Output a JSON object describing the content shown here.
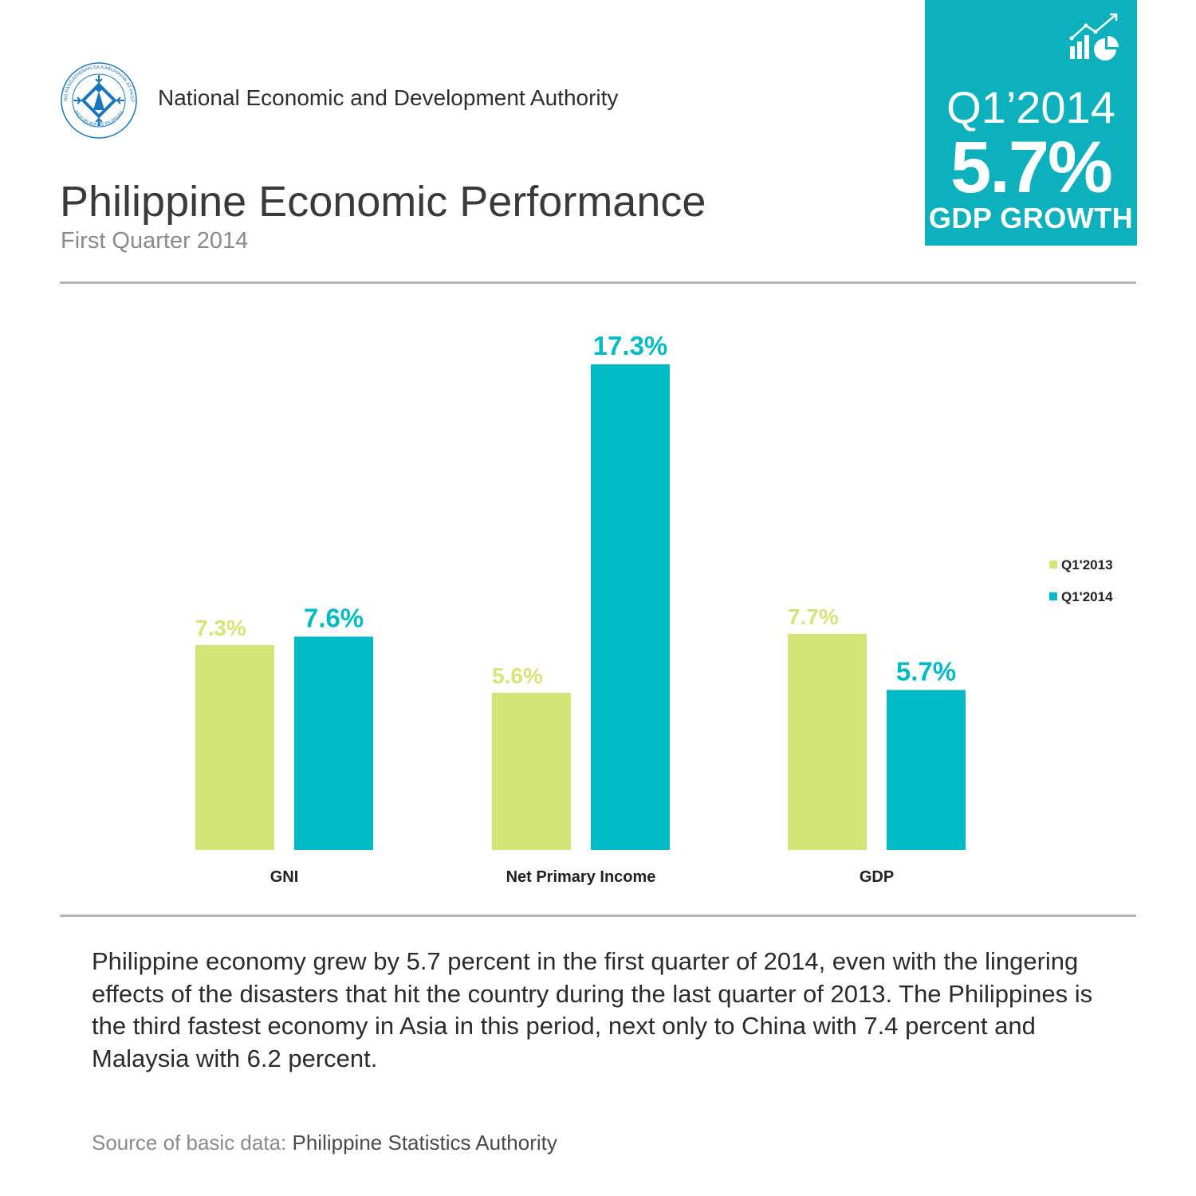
{
  "header": {
    "organization": "National Economic and Development Authority",
    "title": "Philippine Economic Performance",
    "subtitle": "First Quarter 2014"
  },
  "seal": {
    "ring_text_top": "PAMBANSANG PANGASIWAAN SA KABUHAYAN AT PAGPAPAUNLAD",
    "ring_text_bottom": "REPUBLIKA NG PILIPINAS"
  },
  "badge": {
    "period": "Q1’2014",
    "value": "5.7%",
    "label": "GDP GROWTH",
    "icon": "bar-pie-trend-icon"
  },
  "chart_data": {
    "type": "bar",
    "title": "",
    "xlabel": "",
    "ylabel": "",
    "categories": [
      "GNI",
      "Net Primary Income",
      "GDP"
    ],
    "series": [
      {
        "name": "Q1'2013",
        "color": "#d2e576",
        "values": [
          7.3,
          5.6,
          7.7
        ],
        "labels": [
          "7.3%",
          "5.6%",
          "7.7%"
        ]
      },
      {
        "name": "Q1'2014",
        "color": "#00bac6",
        "values": [
          7.6,
          17.3,
          5.7
        ],
        "labels": [
          "7.6%",
          "17.3%",
          "5.7%"
        ]
      }
    ],
    "ylim": [
      0,
      17.3
    ],
    "grid": false,
    "legend": "right"
  },
  "body": {
    "paragraph": "Philippine economy grew by 5.7 percent in the first quarter of 2014, even with the lingering effects of the disasters that hit the country during the last quarter of 2013. The Philippines is the third fastest economy in Asia in this period, next only to China with 7.4 percent and Malaysia with 6.2 percent."
  },
  "footer": {
    "source_prefix": "Source of basic data:",
    "source_name": "Philippine Statistics Authority"
  },
  "colors": {
    "accent": "#0cb1bd",
    "q1_2013": "#d2e576",
    "q1_2014": "#00bac6",
    "seal_blue": "#1c75bc"
  }
}
